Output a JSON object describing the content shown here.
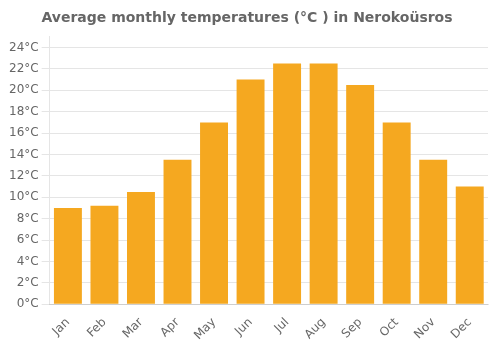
{
  "chart_data": {
    "type": "bar",
    "title": "Average monthly temperatures (°C ) in Nerokoüsros",
    "categories": [
      "Jan",
      "Feb",
      "Mar",
      "Apr",
      "May",
      "Jun",
      "Jul",
      "Aug",
      "Sep",
      "Oct",
      "Nov",
      "Dec"
    ],
    "values": [
      9.0,
      9.2,
      10.5,
      13.5,
      17.0,
      21.0,
      22.5,
      22.5,
      20.5,
      17.0,
      13.5,
      11.0
    ],
    "color": "#F5A820",
    "ylim": [
      0,
      25
    ],
    "yticks": [
      {
        "value": 0,
        "label": "0°C"
      },
      {
        "value": 2,
        "label": "2°C"
      },
      {
        "value": 4,
        "label": "4°C"
      },
      {
        "value": 6,
        "label": "6°C"
      },
      {
        "value": 8,
        "label": "8°C"
      },
      {
        "value": 10,
        "label": "10°C"
      },
      {
        "value": 12,
        "label": "12°C"
      },
      {
        "value": 14,
        "label": "14°C"
      },
      {
        "value": 16,
        "label": "16°C"
      },
      {
        "value": 18,
        "label": "18°C"
      },
      {
        "value": 20,
        "label": "20°C"
      },
      {
        "value": 22,
        "label": "22°C"
      },
      {
        "value": 24,
        "label": "24°C"
      }
    ],
    "grid": true
  }
}
